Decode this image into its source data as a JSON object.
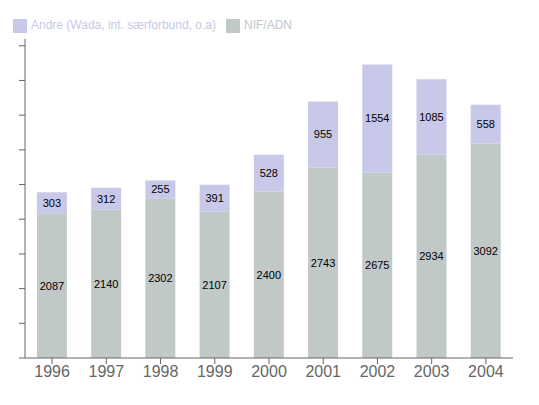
{
  "chart_data": {
    "type": "bar",
    "stacked": true,
    "categories": [
      "1996",
      "1997",
      "1998",
      "1999",
      "2000",
      "2001",
      "2002",
      "2003",
      "2004"
    ],
    "series": [
      {
        "name": "NIF/ADN",
        "color": "#c0c8c8",
        "values": [
          2087,
          2140,
          2302,
          2107,
          2400,
          2743,
          2675,
          2934,
          3092
        ]
      },
      {
        "name": "Andre (Wada, int. særforbund, o.a)",
        "color": "#c8c8e8",
        "values": [
          303,
          312,
          255,
          391,
          528,
          955,
          1554,
          1085,
          558
        ]
      }
    ],
    "ylim": [
      0,
      4600
    ],
    "yticks": [
      0,
      500,
      1000,
      1500,
      2000,
      2500,
      3000,
      3500,
      4000,
      4500
    ],
    "data_labels": true,
    "tick_labels": "x",
    "legend": "upper left"
  }
}
